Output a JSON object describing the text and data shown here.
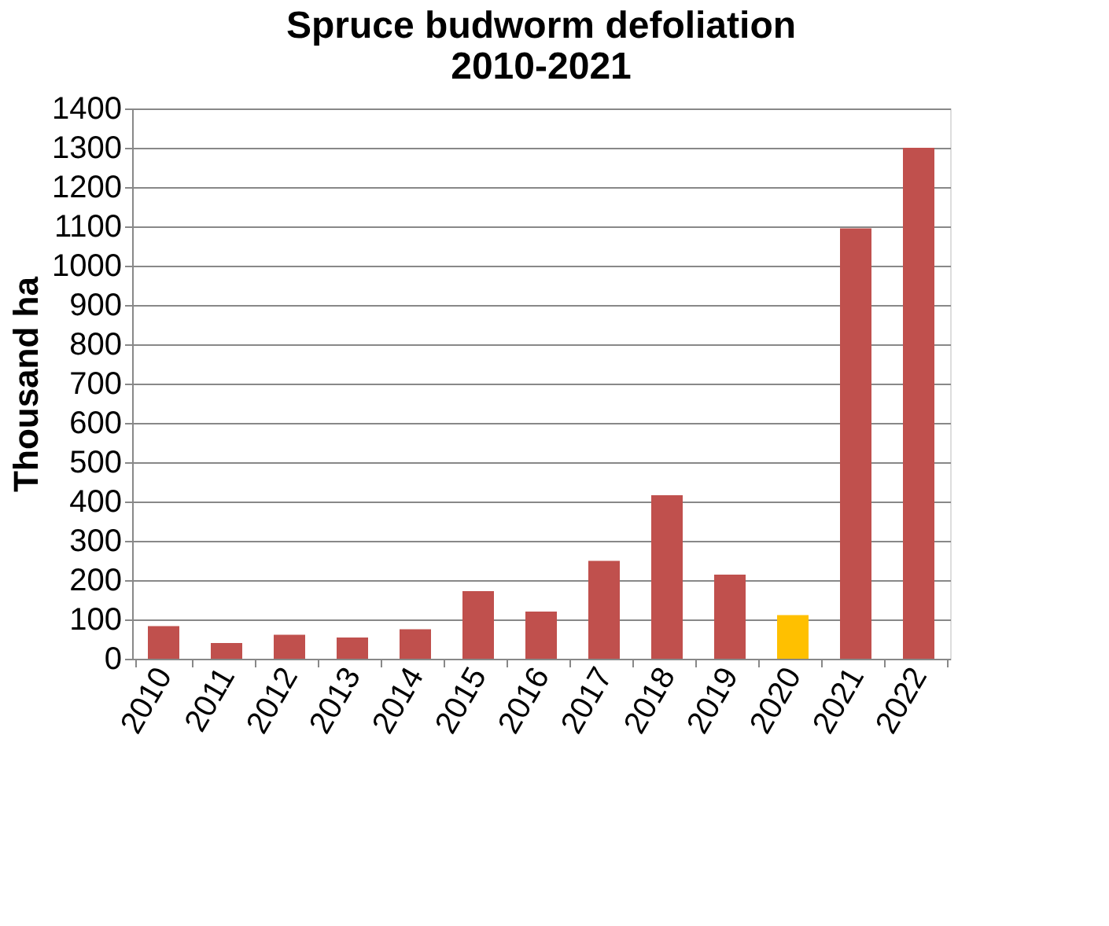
{
  "chart_data": {
    "type": "bar",
    "title": [
      "Spruce budworm defoliation",
      "2010-2021"
    ],
    "ylabel": "Thousand ha",
    "categories": [
      "2010",
      "2011",
      "2012",
      "2013",
      "2014",
      "2015",
      "2016",
      "2017",
      "2018",
      "2019",
      "2020",
      "2021",
      "2022"
    ],
    "values": [
      83,
      40,
      61,
      54,
      75,
      172,
      120,
      249,
      416,
      214,
      111,
      1095,
      1300
    ],
    "colors": [
      "#c0504d",
      "#c0504d",
      "#c0504d",
      "#c0504d",
      "#c0504d",
      "#c0504d",
      "#c0504d",
      "#c0504d",
      "#c0504d",
      "#c0504d",
      "#ffc000",
      "#c0504d",
      "#c0504d"
    ],
    "ylim": [
      0,
      1400
    ],
    "yticks": [
      0,
      100,
      200,
      300,
      400,
      500,
      600,
      700,
      800,
      900,
      1000,
      1100,
      1200,
      1300,
      1400
    ],
    "grid": "y"
  }
}
